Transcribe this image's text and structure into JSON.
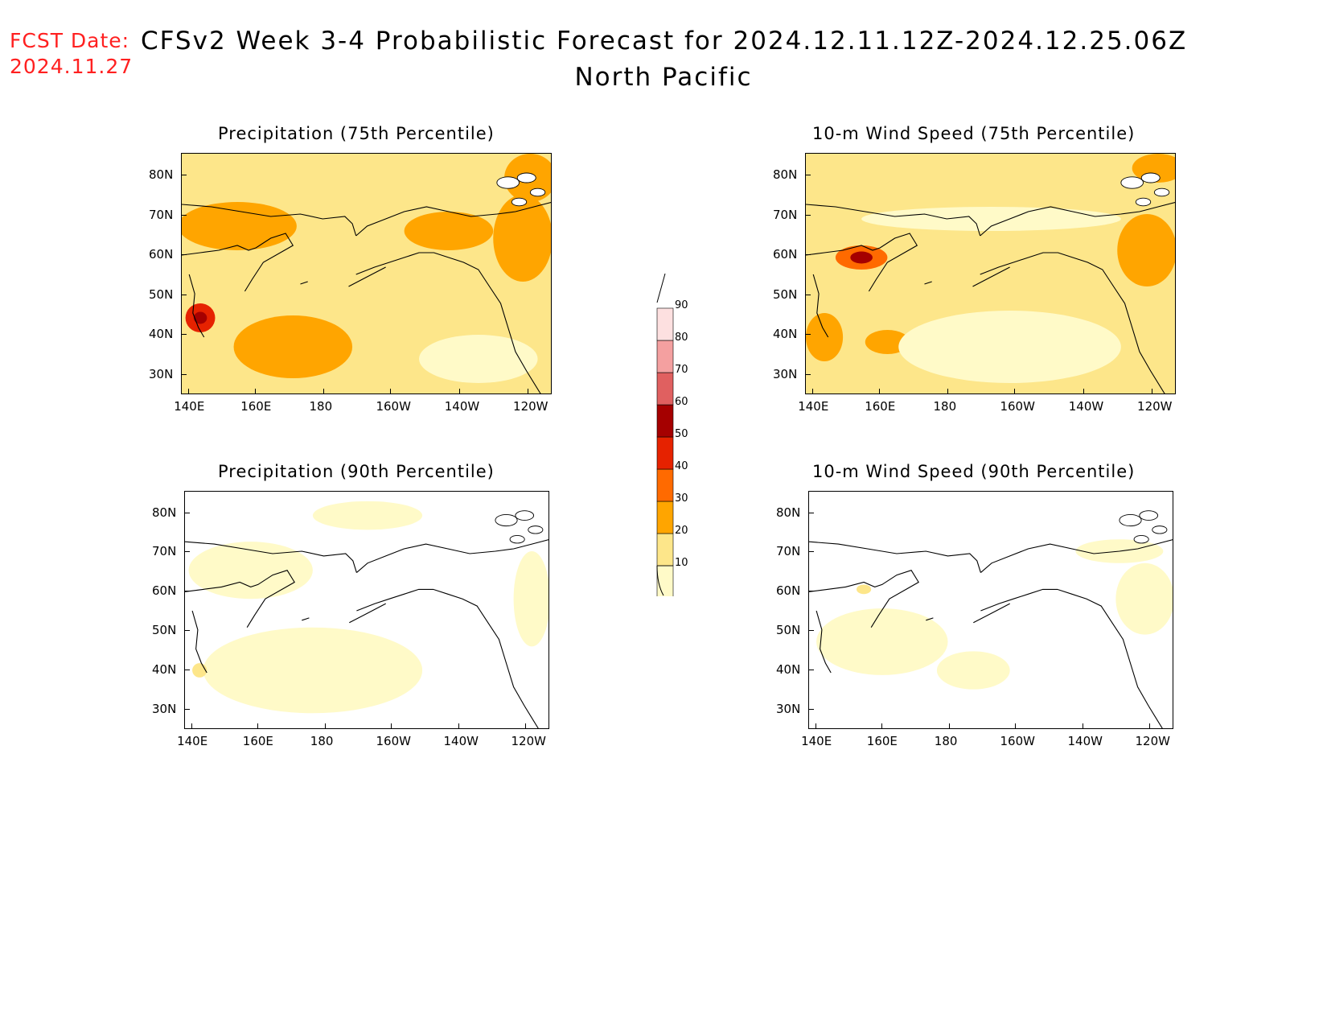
{
  "header": {
    "fcst_label": "FCST Date:",
    "fcst_date": "2024.11.27",
    "title": "CFSv2 Week 3-4 Probabilistic Forecast for 2024.12.11.12Z-2024.12.25.06Z",
    "subtitle": "North Pacific"
  },
  "axes": {
    "lon_ticks": [
      "140E",
      "160E",
      "180",
      "160W",
      "140W",
      "120W"
    ],
    "lat_ticks": [
      "80N",
      "70N",
      "60N",
      "50N",
      "40N",
      "30N"
    ]
  },
  "panels": [
    {
      "id": "precip75",
      "title": "Precipitation (75th Percentile)",
      "intensity": "high",
      "variable": "precip"
    },
    {
      "id": "wind75",
      "title": "10-m Wind Speed (75th Percentile)",
      "intensity": "high",
      "variable": "wind"
    },
    {
      "id": "precip90",
      "title": "Precipitation (90th Percentile)",
      "intensity": "low",
      "variable": "precip"
    },
    {
      "id": "wind90",
      "title": "10-m Wind Speed (90th Percentile)",
      "intensity": "low",
      "variable": "wind"
    }
  ],
  "colorbar": {
    "labels": [
      "90",
      "80",
      "70",
      "60",
      "50",
      "40",
      "30",
      "20",
      "10"
    ],
    "colors": {
      "c10": "#fffac8",
      "c20": "#fde68a",
      "c30": "#ffa500",
      "c40": "#ff6a00",
      "c50": "#e62200",
      "c60": "#a50000",
      "c70": "#e06060",
      "c80": "#f4a0a0",
      "c90": "#fde0e0"
    }
  }
}
